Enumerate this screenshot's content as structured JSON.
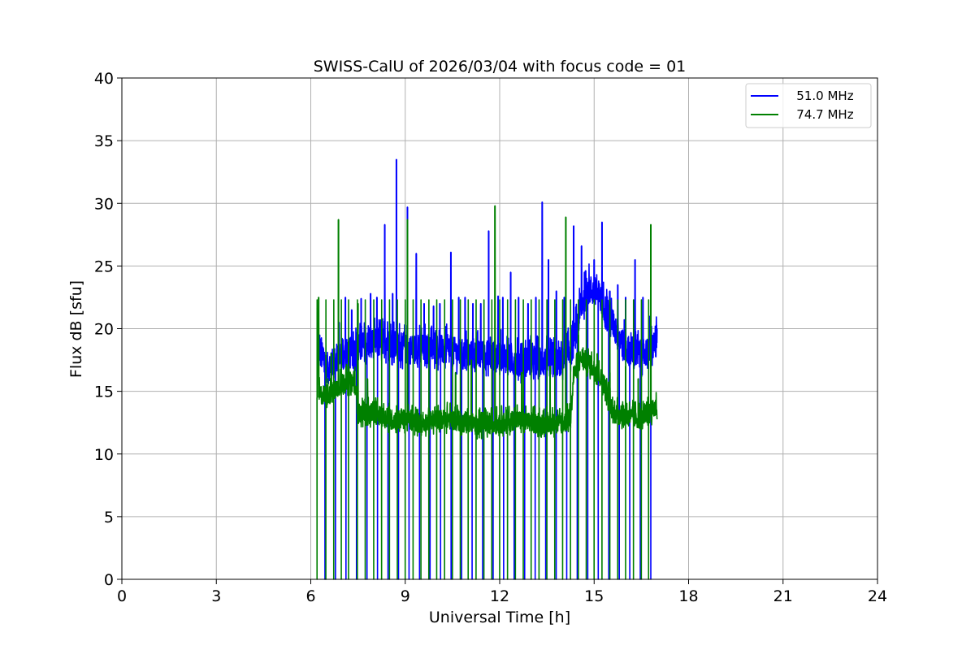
{
  "chart_data": {
    "type": "line",
    "title": "SWISS-CalU of 2026/03/04 with focus code = 01",
    "xlabel": "Universal Time [h]",
    "ylabel": "Flux dB [sfu]",
    "xlim": [
      0,
      24
    ],
    "ylim": [
      0,
      40
    ],
    "xticks": [
      0,
      3,
      6,
      9,
      12,
      15,
      18,
      21,
      24
    ],
    "yticks": [
      0,
      5,
      10,
      15,
      20,
      25,
      30,
      35,
      40
    ],
    "xtick_labels": [
      "0",
      "3",
      "6",
      "9",
      "12",
      "15",
      "18",
      "21",
      "24"
    ],
    "ytick_labels": [
      "0",
      "5",
      "10",
      "15",
      "20",
      "25",
      "30",
      "35",
      "40"
    ],
    "grid": true,
    "legend_position": "top-right",
    "series": [
      {
        "name": "   51.0 MHz",
        "color": "#0000ff",
        "time_range": [
          6.25,
          17.0
        ],
        "baseline": [
          [
            6.25,
            18.0
          ],
          [
            6.5,
            16.5
          ],
          [
            7.0,
            17.5
          ],
          [
            7.5,
            18.0
          ],
          [
            8.0,
            18.5
          ],
          [
            8.5,
            18.5
          ],
          [
            9.0,
            18.0
          ],
          [
            9.5,
            18.0
          ],
          [
            10.0,
            18.0
          ],
          [
            10.5,
            17.8
          ],
          [
            11.0,
            17.5
          ],
          [
            11.5,
            17.5
          ],
          [
            12.0,
            17.5
          ],
          [
            12.5,
            17.0
          ],
          [
            13.0,
            17.0
          ],
          [
            13.5,
            17.0
          ],
          [
            14.0,
            17.0
          ],
          [
            14.3,
            18.0
          ],
          [
            14.6,
            21.5
          ],
          [
            14.8,
            22.8
          ],
          [
            15.1,
            22.5
          ],
          [
            15.4,
            21.0
          ],
          [
            15.7,
            19.5
          ],
          [
            16.0,
            18.0
          ],
          [
            16.5,
            17.5
          ],
          [
            17.0,
            18.5
          ]
        ],
        "noise_amplitude": 1.2,
        "peaks": [
          [
            6.3,
            18.5
          ],
          [
            6.9,
            20.5
          ],
          [
            7.1,
            22.5
          ],
          [
            7.3,
            21.5
          ],
          [
            7.6,
            22.4
          ],
          [
            7.9,
            22.8
          ],
          [
            8.1,
            22.5
          ],
          [
            8.35,
            28.3
          ],
          [
            8.6,
            22.8
          ],
          [
            8.72,
            33.5
          ],
          [
            9.07,
            29.7
          ],
          [
            9.35,
            26.0
          ],
          [
            9.6,
            22.0
          ],
          [
            9.9,
            21.8
          ],
          [
            10.1,
            22.0
          ],
          [
            10.45,
            26.1
          ],
          [
            10.7,
            22.5
          ],
          [
            10.9,
            22.5
          ],
          [
            11.15,
            22.0
          ],
          [
            11.4,
            22.0
          ],
          [
            11.65,
            27.8
          ],
          [
            11.95,
            22.6
          ],
          [
            12.1,
            22.5
          ],
          [
            12.35,
            24.5
          ],
          [
            12.6,
            22.5
          ],
          [
            12.9,
            22.0
          ],
          [
            13.15,
            22.5
          ],
          [
            13.35,
            30.1
          ],
          [
            13.55,
            25.5
          ],
          [
            13.8,
            23.0
          ],
          [
            14.05,
            22.5
          ],
          [
            14.35,
            28.2
          ],
          [
            14.6,
            26.6
          ],
          [
            15.0,
            25.5
          ],
          [
            15.25,
            28.5
          ],
          [
            15.5,
            23.0
          ],
          [
            15.75,
            23.5
          ],
          [
            16.0,
            22.5
          ],
          [
            16.3,
            25.5
          ],
          [
            16.55,
            22.5
          ],
          [
            16.75,
            21.0
          ],
          [
            16.98,
            20.3
          ]
        ]
      },
      {
        "name": "   74.7 MHz",
        "color": "#008000",
        "time_range": [
          6.25,
          17.0
        ],
        "baseline": [
          [
            6.25,
            14.5
          ],
          [
            6.6,
            14.5
          ],
          [
            7.0,
            15.5
          ],
          [
            7.4,
            15.5
          ],
          [
            7.5,
            13.0
          ],
          [
            8.0,
            13.0
          ],
          [
            8.5,
            12.5
          ],
          [
            9.0,
            12.5
          ],
          [
            9.5,
            12.2
          ],
          [
            10.0,
            12.5
          ],
          [
            10.5,
            12.5
          ],
          [
            11.0,
            12.2
          ],
          [
            11.5,
            12.0
          ],
          [
            12.0,
            12.2
          ],
          [
            12.5,
            12.5
          ],
          [
            13.0,
            12.2
          ],
          [
            13.5,
            12.2
          ],
          [
            14.0,
            12.2
          ],
          [
            14.25,
            12.5
          ],
          [
            14.35,
            16.0
          ],
          [
            14.6,
            17.5
          ],
          [
            15.0,
            16.5
          ],
          [
            15.3,
            15.5
          ],
          [
            15.6,
            13.0
          ],
          [
            16.0,
            12.8
          ],
          [
            16.5,
            12.5
          ],
          [
            16.98,
            13.5
          ]
        ],
        "noise_amplitude": 0.8,
        "peaks": [
          [
            6.25,
            22.5
          ],
          [
            6.65,
            18.0
          ],
          [
            6.88,
            28.7
          ],
          [
            7.2,
            19.0
          ],
          [
            7.5,
            22.0
          ],
          [
            7.8,
            16.0
          ],
          [
            9.07,
            28.7
          ],
          [
            10.6,
            16.5
          ],
          [
            11.1,
            17.5
          ],
          [
            11.85,
            29.8
          ],
          [
            12.7,
            16.5
          ],
          [
            13.6,
            17.0
          ],
          [
            14.1,
            28.9
          ],
          [
            14.5,
            19.5
          ],
          [
            15.1,
            18.0
          ],
          [
            15.5,
            16.5
          ],
          [
            16.0,
            17.0
          ],
          [
            16.4,
            16.0
          ],
          [
            16.8,
            28.3
          ]
        ],
        "spike_times": [
          6.2,
          6.48,
          6.73,
          6.97,
          7.2,
          7.48,
          7.73,
          8.0,
          8.25,
          8.5,
          8.75,
          9.0,
          9.25,
          9.5,
          9.75,
          10.0,
          10.25,
          10.5,
          10.75,
          11.0,
          11.25,
          11.5,
          11.75,
          12.0,
          12.25,
          12.5,
          12.75,
          13.0,
          13.25,
          13.5,
          13.75,
          14.0,
          14.25,
          14.5,
          14.75,
          15.0,
          15.25,
          15.5,
          15.75,
          16.0,
          16.25,
          16.5,
          16.73
        ],
        "spike_top": 22.3
      }
    ],
    "legend": [
      "   51.0 MHz",
      "   74.7 MHz"
    ]
  }
}
